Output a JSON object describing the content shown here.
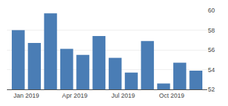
{
  "chart_data": {
    "type": "bar",
    "x": [
      1,
      2,
      3,
      4,
      5,
      6,
      7,
      8,
      9,
      10,
      11,
      12
    ],
    "values": [
      58.0,
      56.7,
      59.7,
      56.1,
      55.5,
      57.4,
      55.2,
      53.7,
      56.9,
      52.6,
      54.7,
      53.9
    ],
    "color": "#4a7db5",
    "xlim": [
      0.3,
      12.7
    ],
    "xticks": [
      {
        "value": 1.5,
        "label": "Jan 2019"
      },
      {
        "value": 4.5,
        "label": "Apr 2019"
      },
      {
        "value": 7.5,
        "label": "Jul 2019"
      },
      {
        "value": 10.5,
        "label": "Oct 2019"
      }
    ],
    "ylim": [
      52,
      60
    ],
    "yticks": [
      52,
      54,
      56,
      58,
      60
    ],
    "grid": true
  }
}
